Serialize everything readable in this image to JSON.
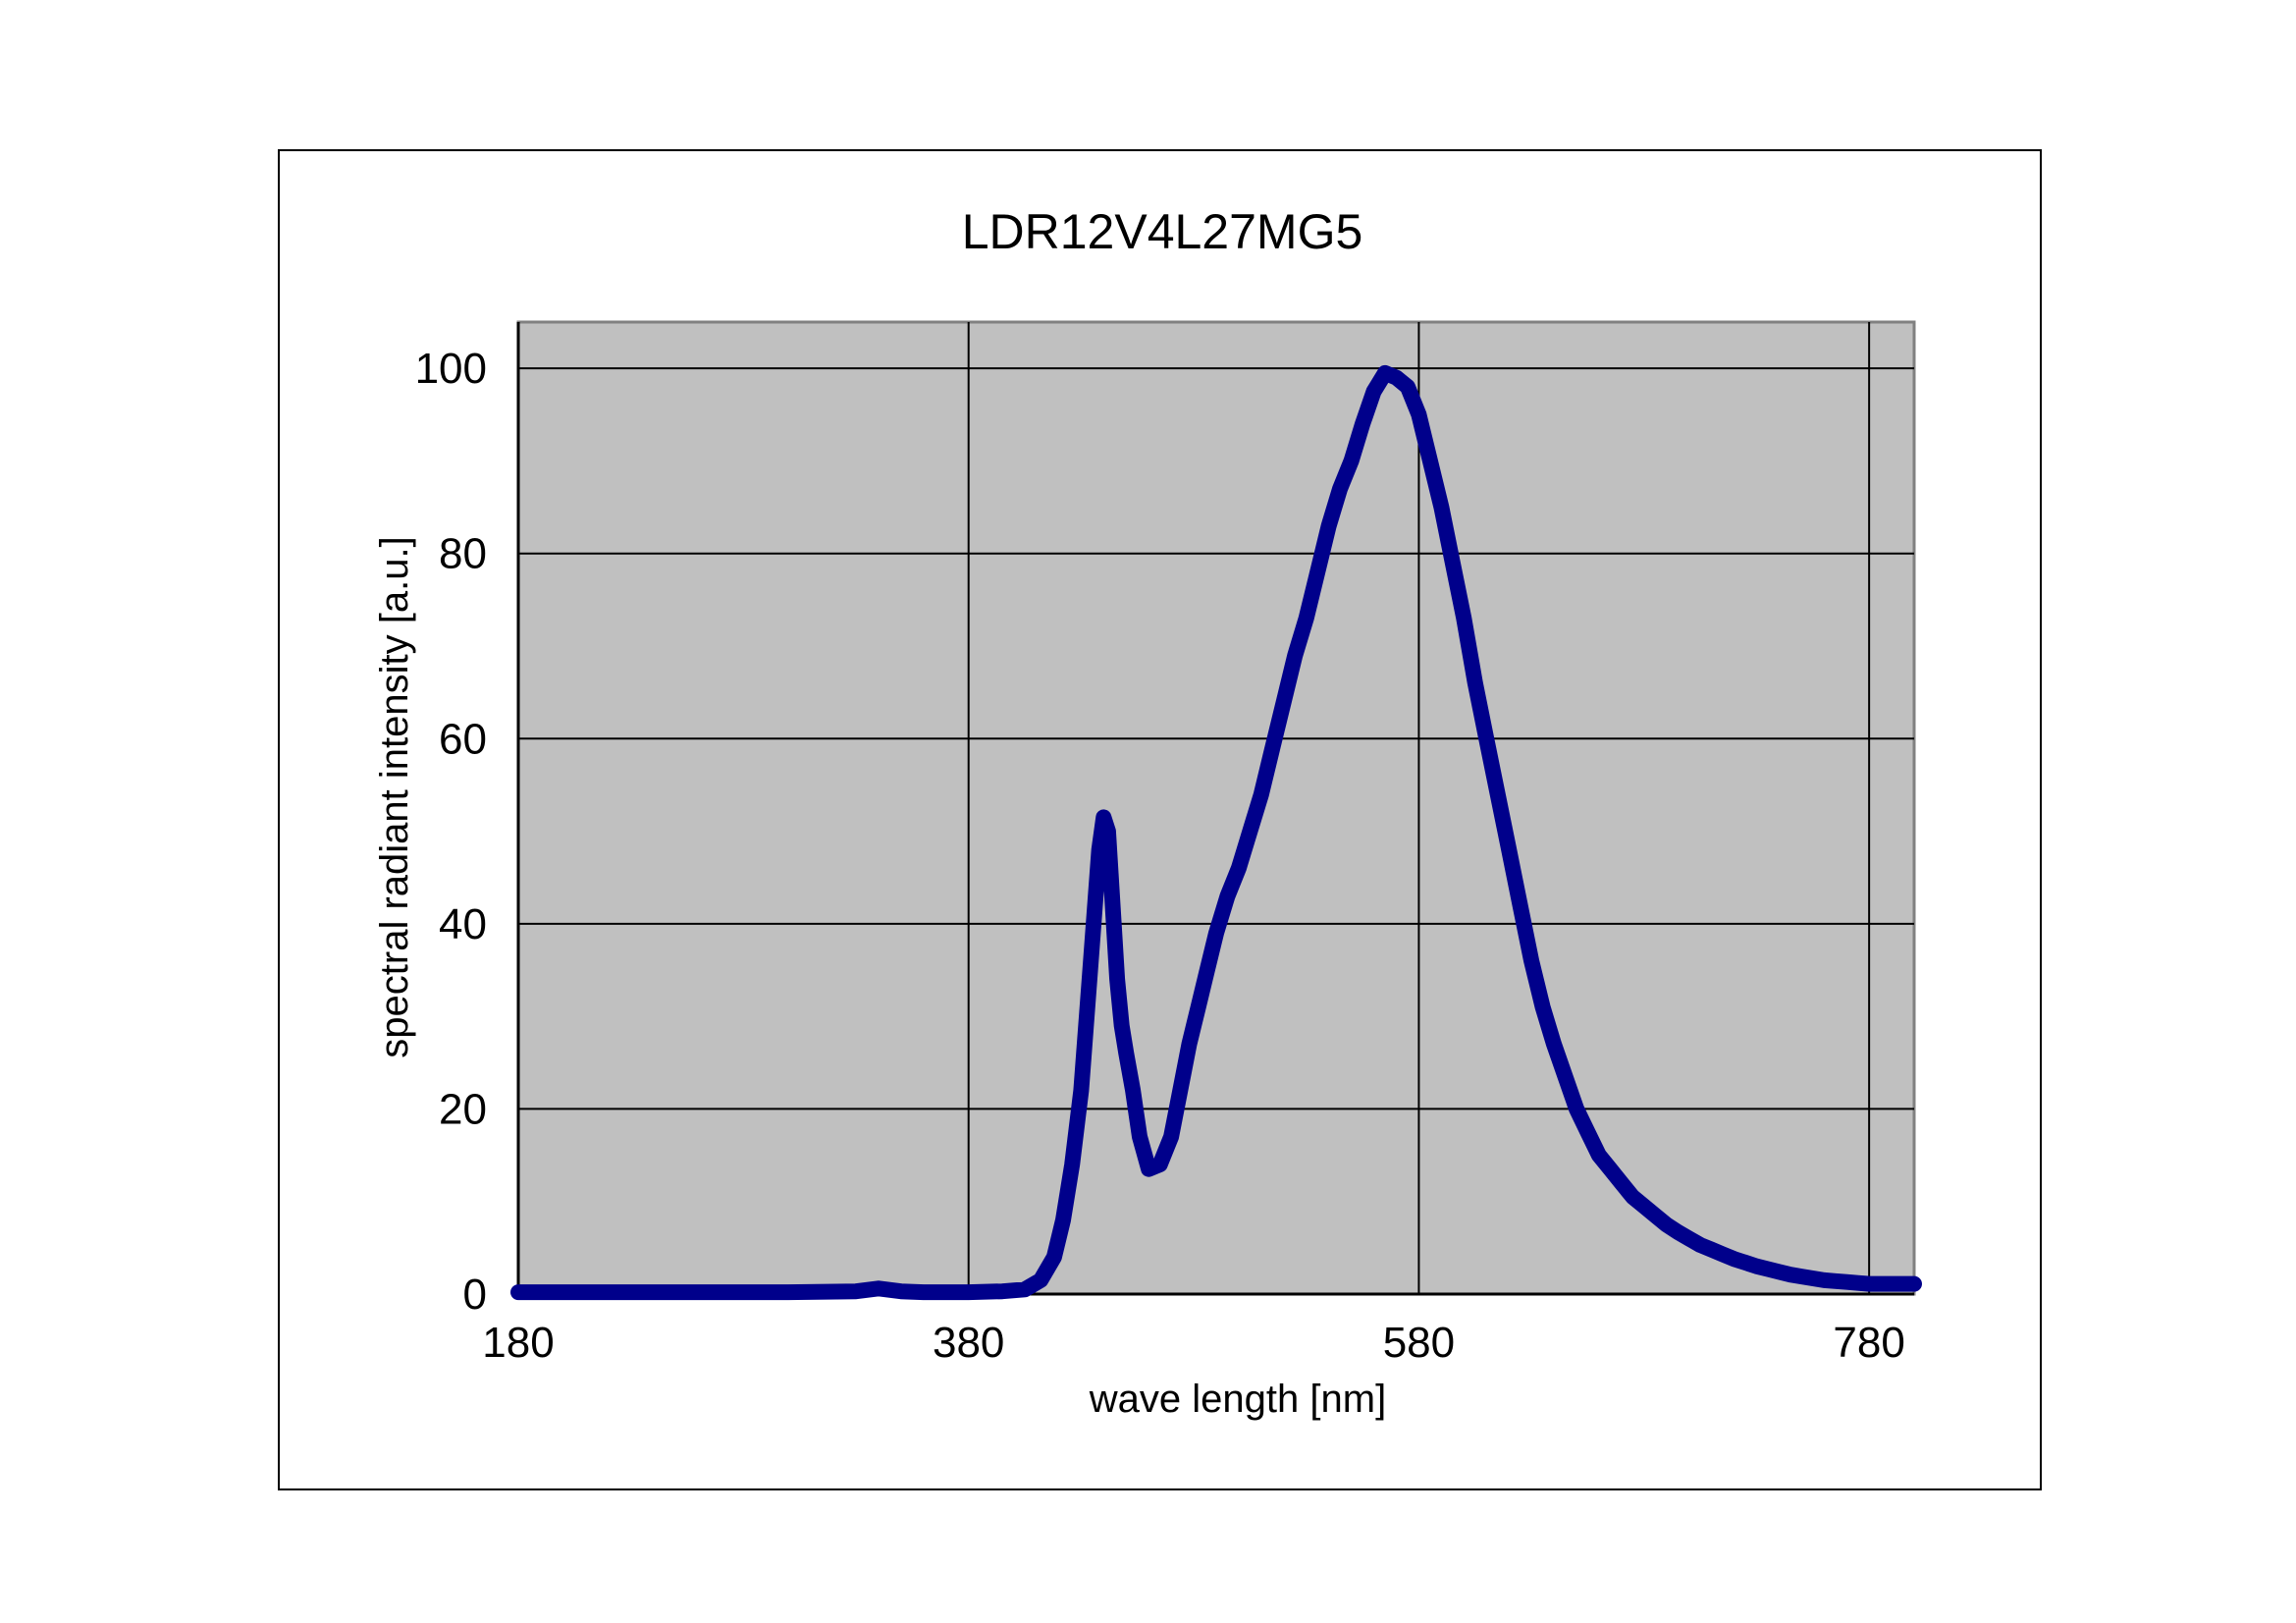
{
  "chart_data": {
    "type": "line",
    "title": "LDR12V4L27MG5",
    "xlabel": "wave length  [nm]",
    "ylabel": "spectral radiant intensity  [a.u.]",
    "xlim": [
      180,
      800
    ],
    "ylim": [
      0,
      105
    ],
    "xticks": [
      180,
      380,
      580,
      780
    ],
    "yticks": [
      0,
      20,
      40,
      60,
      80,
      100
    ],
    "grid": true,
    "plot_background": "#c0c0c0",
    "line_color": "#00008b",
    "series": [
      {
        "x": [
          180,
          250,
          300,
          330,
          340,
          350,
          360,
          380,
          395,
          405,
          412,
          418,
          422,
          426,
          430,
          434,
          438,
          440,
          442,
          444,
          446,
          448,
          450,
          453,
          456,
          460,
          465,
          470,
          474,
          478,
          482,
          486,
          490,
          495,
          500,
          505,
          510,
          515,
          520,
          525,
          530,
          535,
          540,
          545,
          550,
          555,
          560,
          565,
          570,
          575,
          580,
          585,
          590,
          595,
          600,
          605,
          610,
          615,
          620,
          625,
          630,
          635,
          640,
          645,
          650,
          655,
          660,
          665,
          670,
          675,
          680,
          685,
          690,
          695,
          700,
          705,
          710,
          715,
          720,
          725,
          730,
          735,
          740,
          745,
          750,
          755,
          760,
          765,
          770,
          775,
          780,
          785,
          790,
          800
        ],
        "values": [
          0.2,
          0.2,
          0.2,
          0.3,
          0.6,
          0.3,
          0.2,
          0.2,
          0.3,
          0.5,
          1.5,
          4,
          8,
          14,
          22,
          35,
          48,
          51.5,
          50,
          42,
          34,
          29,
          26,
          22,
          17,
          13.5,
          14,
          17,
          22,
          27,
          31,
          35,
          39,
          43,
          46,
          50,
          54,
          59,
          64,
          69,
          73,
          78,
          83,
          87,
          90,
          94,
          97.5,
          99.5,
          99,
          98,
          95,
          90,
          85,
          79,
          73,
          66,
          60,
          54,
          48,
          42,
          36,
          31,
          27,
          23.5,
          20,
          17.5,
          15,
          13.5,
          12,
          10.5,
          9.5,
          8.5,
          7.5,
          6.7,
          6,
          5.3,
          4.8,
          4.3,
          3.8,
          3.4,
          3,
          2.7,
          2.4,
          2.1,
          1.9,
          1.7,
          1.5,
          1.4,
          1.3,
          1.2,
          1.1,
          1.1,
          1.1,
          1.1
        ]
      }
    ]
  }
}
